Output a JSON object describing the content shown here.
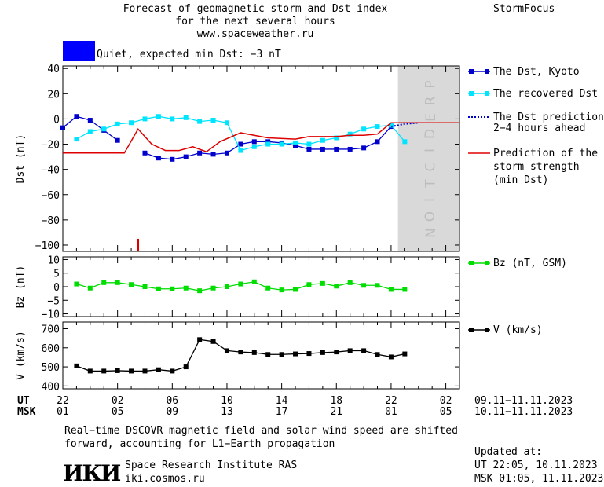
{
  "header": {
    "title_line1": "Forecast of geomagnetic storm and Dst index",
    "title_line2": "for the next several hours",
    "url": "www.spaceweather.ru",
    "brand": "StormFocus"
  },
  "status": {
    "text": "Quiet, expected min Dst: −3 nT",
    "color": "#0000ff"
  },
  "prediction_label": "PREDICTION",
  "time_axis": {
    "ut_label": "UT",
    "msk_label": "MSK",
    "ut_ticks": [
      "22",
      "02",
      "06",
      "10",
      "14",
      "18",
      "22",
      "02"
    ],
    "msk_ticks": [
      "01",
      "05",
      "09",
      "13",
      "17",
      "21",
      "01",
      "05"
    ],
    "ut_range": "09.11−11.11.2023",
    "msk_range": "10.11−11.11.2023"
  },
  "legend": {
    "dst_kyoto": "The Dst, Kyoto",
    "dst_recovered": "The recovered Dst",
    "dst_prediction_line1": "The Dst prediction",
    "dst_prediction_line2": "2−4 hours ahead",
    "storm_line1": "Prediction of the",
    "storm_line2": "storm strength",
    "storm_line3": "(min Dst)",
    "bz": "Bz (nT, GSM)",
    "v": "V (km/s)"
  },
  "footer": {
    "note_line1": "Real−time DSCOVR magnetic field and solar wind speed are shifted",
    "note_line2": "forward, accounting for L1−Earth propagation",
    "logo_text": "ИКИ",
    "institute": "Space Research Institute RAS",
    "site": "iki.cosmos.ru",
    "updated_label": "Updated at:",
    "updated_ut": "UT   22:05, 10.11.2023",
    "updated_msk": "MSK 01:05, 11.11.2023"
  },
  "chart_data": [
    {
      "type": "line",
      "ylabel": "Dst (nT)",
      "ylim": [
        -105,
        42
      ],
      "yticks": [
        40,
        20,
        0,
        -20,
        -40,
        -60,
        -80,
        -100
      ],
      "xlim": [
        0,
        29
      ],
      "prediction_span": [
        24.5,
        29
      ],
      "colors": {
        "dst_kyoto": "#0000cc",
        "dst_recovered": "#00e5ff",
        "dst_prediction": "#0000cc",
        "storm": "#dd0000"
      },
      "series": [
        {
          "name": "The Dst, Kyoto",
          "x": [
            0,
            1,
            2,
            3,
            4,
            5,
            6,
            7,
            8,
            9,
            10,
            11,
            12,
            13,
            14,
            15,
            16,
            17,
            18,
            19,
            20,
            21,
            22,
            23,
            24
          ],
          "y": [
            -7,
            2,
            -1,
            -9,
            -17,
            null,
            -27,
            -31,
            -32,
            -30,
            -27,
            -28,
            -27,
            -20,
            -18,
            -18,
            -19,
            -21,
            -24,
            -24,
            -24,
            -24,
            -23,
            -18,
            -6
          ]
        },
        {
          "name": "The recovered Dst",
          "x": [
            1,
            2,
            3,
            4,
            5,
            6,
            7,
            8,
            9,
            10,
            11,
            12,
            13,
            14,
            15,
            16,
            17,
            18,
            19,
            20,
            21,
            22,
            23,
            24,
            25
          ],
          "y": [
            -16,
            -10,
            -8,
            -4,
            -3,
            0,
            2,
            0,
            1,
            -2,
            -1,
            -3,
            -25,
            -22,
            -20,
            -20,
            -19,
            -20,
            -17,
            -15,
            -12,
            -8,
            -6,
            -5,
            -18
          ]
        },
        {
          "name": "The Dst prediction 2−4 hours ahead",
          "x": [
            24,
            25,
            26
          ],
          "y": [
            -6,
            -4,
            -3
          ]
        },
        {
          "name": "Prediction of the storm strength (min Dst)",
          "x": [
            0,
            4.5,
            5.5,
            6.5,
            7.5,
            8.5,
            9.5,
            10.5,
            11.5,
            13,
            15,
            17,
            18,
            19,
            20,
            21,
            22,
            23,
            24,
            25,
            29
          ],
          "y": [
            -27,
            -27,
            -8,
            -20,
            -25,
            -25,
            -22,
            -26,
            -18,
            -11,
            -15,
            -16,
            -14,
            -14,
            -14,
            -13,
            -13,
            -12,
            -3,
            -3,
            -3
          ]
        }
      ],
      "marker": {
        "x": 5.5,
        "y_from": -105,
        "y_to": -95
      }
    },
    {
      "type": "line",
      "ylabel": "Bz (nT)",
      "ylim": [
        -11,
        11
      ],
      "yticks": [
        10,
        5,
        0,
        -5,
        -10
      ],
      "xlim": [
        0,
        29
      ],
      "color": "#00dd00",
      "series": [
        {
          "name": "Bz (nT, GSM)",
          "x": [
            1,
            2,
            3,
            4,
            5,
            6,
            7,
            8,
            9,
            10,
            11,
            12,
            13,
            14,
            15,
            16,
            17,
            18,
            19,
            20,
            21,
            22,
            23,
            24,
            25
          ],
          "y": [
            1,
            -0.5,
            1.5,
            1.5,
            0.8,
            0,
            -0.8,
            -0.8,
            -0.5,
            -1.5,
            -0.5,
            0,
            1,
            1.8,
            -0.5,
            -1.2,
            -1,
            0.8,
            1.2,
            0.2,
            1.5,
            0.5,
            0.5,
            -1,
            -1
          ]
        }
      ]
    },
    {
      "type": "line",
      "ylabel": "V (km/s)",
      "ylim": [
        385,
        735
      ],
      "yticks": [
        700,
        600,
        500,
        400
      ],
      "xlim": [
        0,
        29
      ],
      "color": "#000000",
      "series": [
        {
          "name": "V (km/s)",
          "x": [
            1,
            2,
            3,
            4,
            5,
            6,
            7,
            8,
            9,
            10,
            11,
            12,
            13,
            14,
            15,
            16,
            17,
            18,
            19,
            20,
            21,
            22,
            23,
            24,
            25
          ],
          "y": [
            505,
            478,
            478,
            480,
            478,
            478,
            485,
            478,
            500,
            643,
            633,
            585,
            578,
            575,
            565,
            565,
            568,
            570,
            575,
            578,
            585,
            585,
            565,
            552,
            568
          ]
        }
      ]
    }
  ]
}
